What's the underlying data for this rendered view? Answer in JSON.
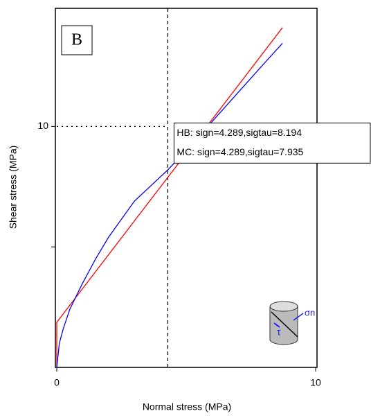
{
  "chart_data": {
    "type": "line",
    "panel_label": "B",
    "x_label": "Normal stress (MPa)",
    "y_label": "Shear stress (MPa)",
    "xlim": [
      0,
      10
    ],
    "xticks": [
      0,
      10
    ],
    "ylim": [
      0,
      14.9
    ],
    "yticks": [
      10
    ],
    "minor_yticks": [
      5
    ],
    "series": [
      {
        "color": "#ff0000",
        "x": [
          0,
          0,
          8.72
        ],
        "values": [
          0,
          1.87,
          14.1
        ]
      },
      {
        "color": "#0000ff",
        "x": [
          0,
          0.1,
          0.25,
          0.5,
          1,
          1.5,
          2,
          3,
          4.289,
          5,
          6,
          7,
          8,
          8.72
        ],
        "values": [
          0,
          1.0,
          1.6,
          2.4,
          3.5,
          4.5,
          5.4,
          6.9,
          8.194,
          9.0,
          10.2,
          11.4,
          12.6,
          13.45
        ]
      }
    ],
    "marker_x": 4.289,
    "marker_y": 10,
    "annotation": [
      "HB: sign=4.289,sigtau=8.194",
      "MC: sign=4.289,sigtau=7.935"
    ],
    "icon_labels": [
      "σn",
      "τ"
    ]
  }
}
